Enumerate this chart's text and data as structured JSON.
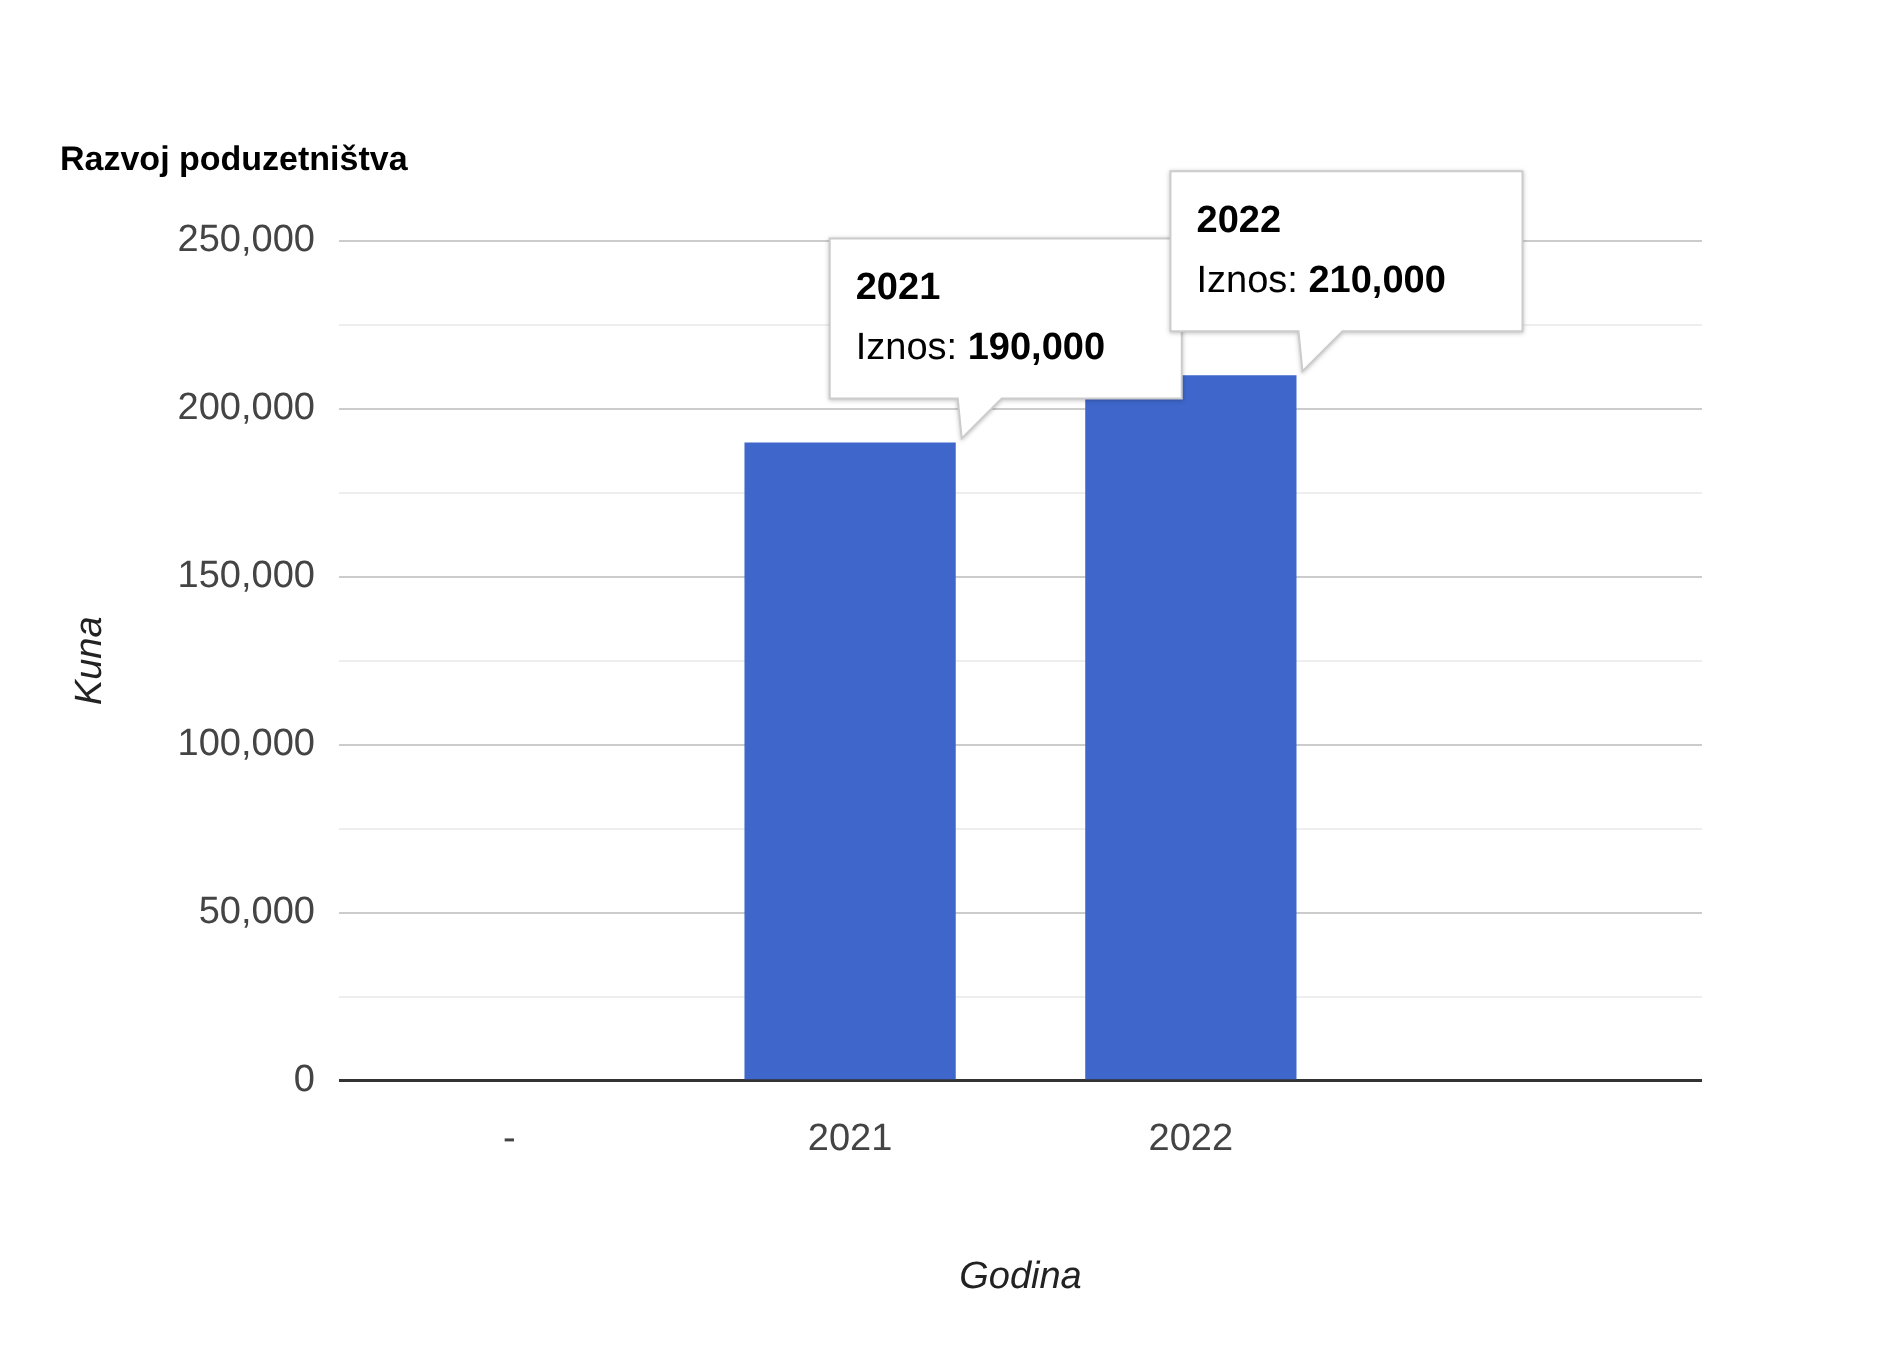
{
  "chart_data": {
    "type": "bar",
    "title": "Razvoj poduzetništva",
    "xlabel": "Godina",
    "ylabel": "Kuna",
    "categories": [
      "-",
      "2021",
      "2022",
      null
    ],
    "values": [
      0,
      190000,
      210000,
      null
    ],
    "color": "#3e66cb",
    "ylim": [
      0,
      250000
    ],
    "yticks": [
      0,
      {
        "value": 25000,
        "label": null
      },
      {
        "value": 50000,
        "label": "50,000"
      },
      {
        "value": 75000,
        "label": null
      },
      {
        "value": 100000,
        "label": "100,000"
      },
      {
        "value": 125000,
        "label": null
      },
      {
        "value": 150000,
        "label": "150,000"
      },
      {
        "value": 175000,
        "label": null
      },
      {
        "value": 200000,
        "label": "200,000"
      },
      {
        "value": 225000,
        "label": null
      },
      {
        "value": 250000,
        "label": "250,000"
      }
    ],
    "grid": "y",
    "legend": false,
    "annotations": [
      {
        "text": "2021\nIznos: 190,000",
        "x": "2021",
        "y": 190000
      },
      {
        "text": "2022\nIznos: 210,000",
        "x": "2022",
        "y": 210000
      }
    ]
  }
}
